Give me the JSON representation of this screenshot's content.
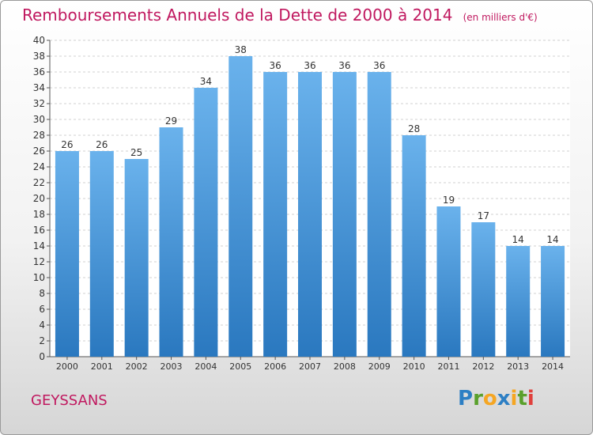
{
  "chart_data": {
    "type": "bar",
    "title": "Remboursements Annuels de la Dette de 2000 à 2014",
    "unit_label": "(en milliers d'€)",
    "categories": [
      "2000",
      "2001",
      "2002",
      "2003",
      "2004",
      "2005",
      "2006",
      "2007",
      "2008",
      "2009",
      "2010",
      "2011",
      "2012",
      "2013",
      "2014"
    ],
    "values": [
      26,
      26,
      25,
      29,
      34,
      38,
      36,
      36,
      36,
      36,
      28,
      19,
      17,
      14,
      14
    ],
    "ylim": [
      0,
      40
    ],
    "ytick_step": 2,
    "grid": true,
    "bar_color_top": "#6ab2ec",
    "bar_color_bottom": "#2a78bf"
  },
  "footer": {
    "place": "GEYSSANS",
    "brand": "Proxiti"
  },
  "colors": {
    "title": "#c0185f"
  }
}
